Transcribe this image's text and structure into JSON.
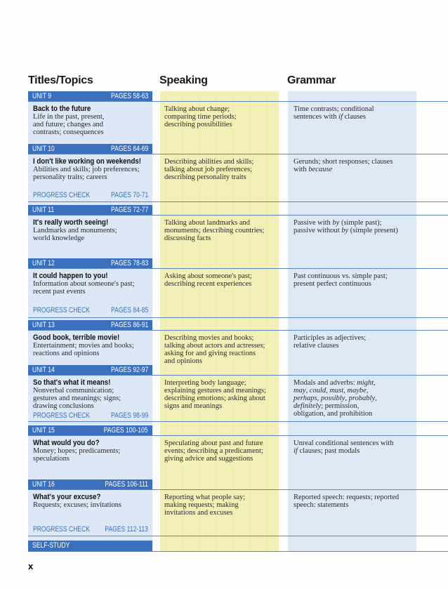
{
  "headers": {
    "titles": "Titles/Topics",
    "speaking": "Speaking",
    "grammar": "Grammar"
  },
  "units": [
    {
      "unit": "UNIT 9",
      "pages": "PAGES 58-63",
      "title": "Back to the future",
      "topics": "Life in the past, present,\nand future; changes and\ncontrasts; consequences",
      "speaking": "Talking about change;\ncomparing time periods;\ndescribing possibilities",
      "grammar": [
        {
          "t": "Time contrasts; conditional\nsentences with "
        },
        {
          "t": "if",
          "i": true
        },
        {
          "t": " clauses"
        }
      ],
      "progress": null
    },
    {
      "unit": "UNIT 10",
      "pages": "PAGES 64-69",
      "title": "I don't like working on weekends!",
      "topics": "Abilities and skills; job preferences;\npersonality traits; careers",
      "speaking": "Describing abilities and skills;\ntalking about job preferences;\ndescribing personality traits",
      "grammar": [
        {
          "t": "Gerunds; short responses; clauses\nwith "
        },
        {
          "t": "because",
          "i": true
        }
      ],
      "progress": {
        "label": "PROGRESS CHECK",
        "pages": "PAGES 70-71"
      }
    },
    {
      "unit": "UNIT 11",
      "pages": "PAGES 72-77",
      "title": "It's really worth seeing!",
      "topics": "Landmarks and monuments;\nworld knowledge",
      "speaking": "Talking about landmarks and\nmonuments; describing countries;\ndiscussing facts",
      "grammar": [
        {
          "t": "Passive with "
        },
        {
          "t": "by",
          "i": true
        },
        {
          "t": " (simple past);\npassive without "
        },
        {
          "t": "by",
          "i": true
        },
        {
          "t": " (simple present)"
        }
      ],
      "progress": null
    },
    {
      "unit": "UNIT 12",
      "pages": "PAGES 78-83",
      "title": "It could happen to you!",
      "topics": "Information about someone's past;\nrecent past events",
      "speaking": "Asking about someone's past;\ndescribing recent experiences",
      "grammar": [
        {
          "t": "Past continuous vs. simple past;\npresent perfect continuous"
        }
      ],
      "progress": {
        "label": "PROGRESS CHECK",
        "pages": "PAGES 84-85"
      }
    },
    {
      "unit": "UNIT 13",
      "pages": "PAGES 86-91",
      "title": "Good book, terrible movie!",
      "topics": "Entertainment; movies and books;\nreactions and opinions",
      "speaking": "Describing movies and books;\ntalking about actors and actresses;\nasking for and giving reactions\nand opinions",
      "grammar": [
        {
          "t": "Participles as adjectives;\nrelative clauses"
        }
      ],
      "progress": null
    },
    {
      "unit": "UNIT 14",
      "pages": "PAGES 92-97",
      "title": "So that's what it means!",
      "topics": "Nonverbal communication;\ngestures and meanings; signs;\ndrawing conclusions",
      "speaking": "Interpreting body language;\nexplaining gestures and meanings;\ndescribing emotions; asking about\nsigns and meanings",
      "grammar": [
        {
          "t": "Modals and adverbs: "
        },
        {
          "t": "might",
          "i": true
        },
        {
          "t": ",\n"
        },
        {
          "t": "may",
          "i": true
        },
        {
          "t": ", "
        },
        {
          "t": "could",
          "i": true
        },
        {
          "t": ", "
        },
        {
          "t": "must",
          "i": true
        },
        {
          "t": ", "
        },
        {
          "t": "maybe",
          "i": true
        },
        {
          "t": ",\n"
        },
        {
          "t": "perhaps",
          "i": true
        },
        {
          "t": ", "
        },
        {
          "t": "possibly",
          "i": true
        },
        {
          "t": ", "
        },
        {
          "t": "probably",
          "i": true
        },
        {
          "t": ",\n"
        },
        {
          "t": "definitely",
          "i": true
        },
        {
          "t": "; permission,\nobligation, and prohibition"
        }
      ],
      "progress": {
        "label": "PROGRESS CHECK",
        "pages": "PAGES 98-99"
      }
    },
    {
      "unit": "UNIT 15",
      "pages": "PAGES 100-105",
      "title": "What would you do?",
      "topics": "Money; hopes; predicaments;\nspeculations",
      "speaking": "Speculating about past and future\nevents; describing a predicament;\ngiving advice and suggestions",
      "grammar": [
        {
          "t": "Unreal conditional sentences with\n"
        },
        {
          "t": "if",
          "i": true
        },
        {
          "t": " clauses; past modals"
        }
      ],
      "progress": null
    },
    {
      "unit": "UNIT 16",
      "pages": "PAGES 106-111",
      "title": "What's your excuse?",
      "topics": "Requests; excuses; invitations",
      "speaking": "Reporting what people say;\nmaking requests; making\ninvitations and excuses",
      "grammar": [
        {
          "t": "Reported speech: requests; reported\nspeech: statements"
        }
      ],
      "progress": {
        "label": "PROGRESS CHECK",
        "pages": "PAGES 112-113"
      }
    }
  ],
  "self_study": "SELF-STUDY",
  "page_number": "x",
  "colors": {
    "unit_bar": "#3a70bd",
    "titles_column": "#dce8f6",
    "speaking_column": "#f4f2b8",
    "grammar_column": "#dfe9f6"
  }
}
